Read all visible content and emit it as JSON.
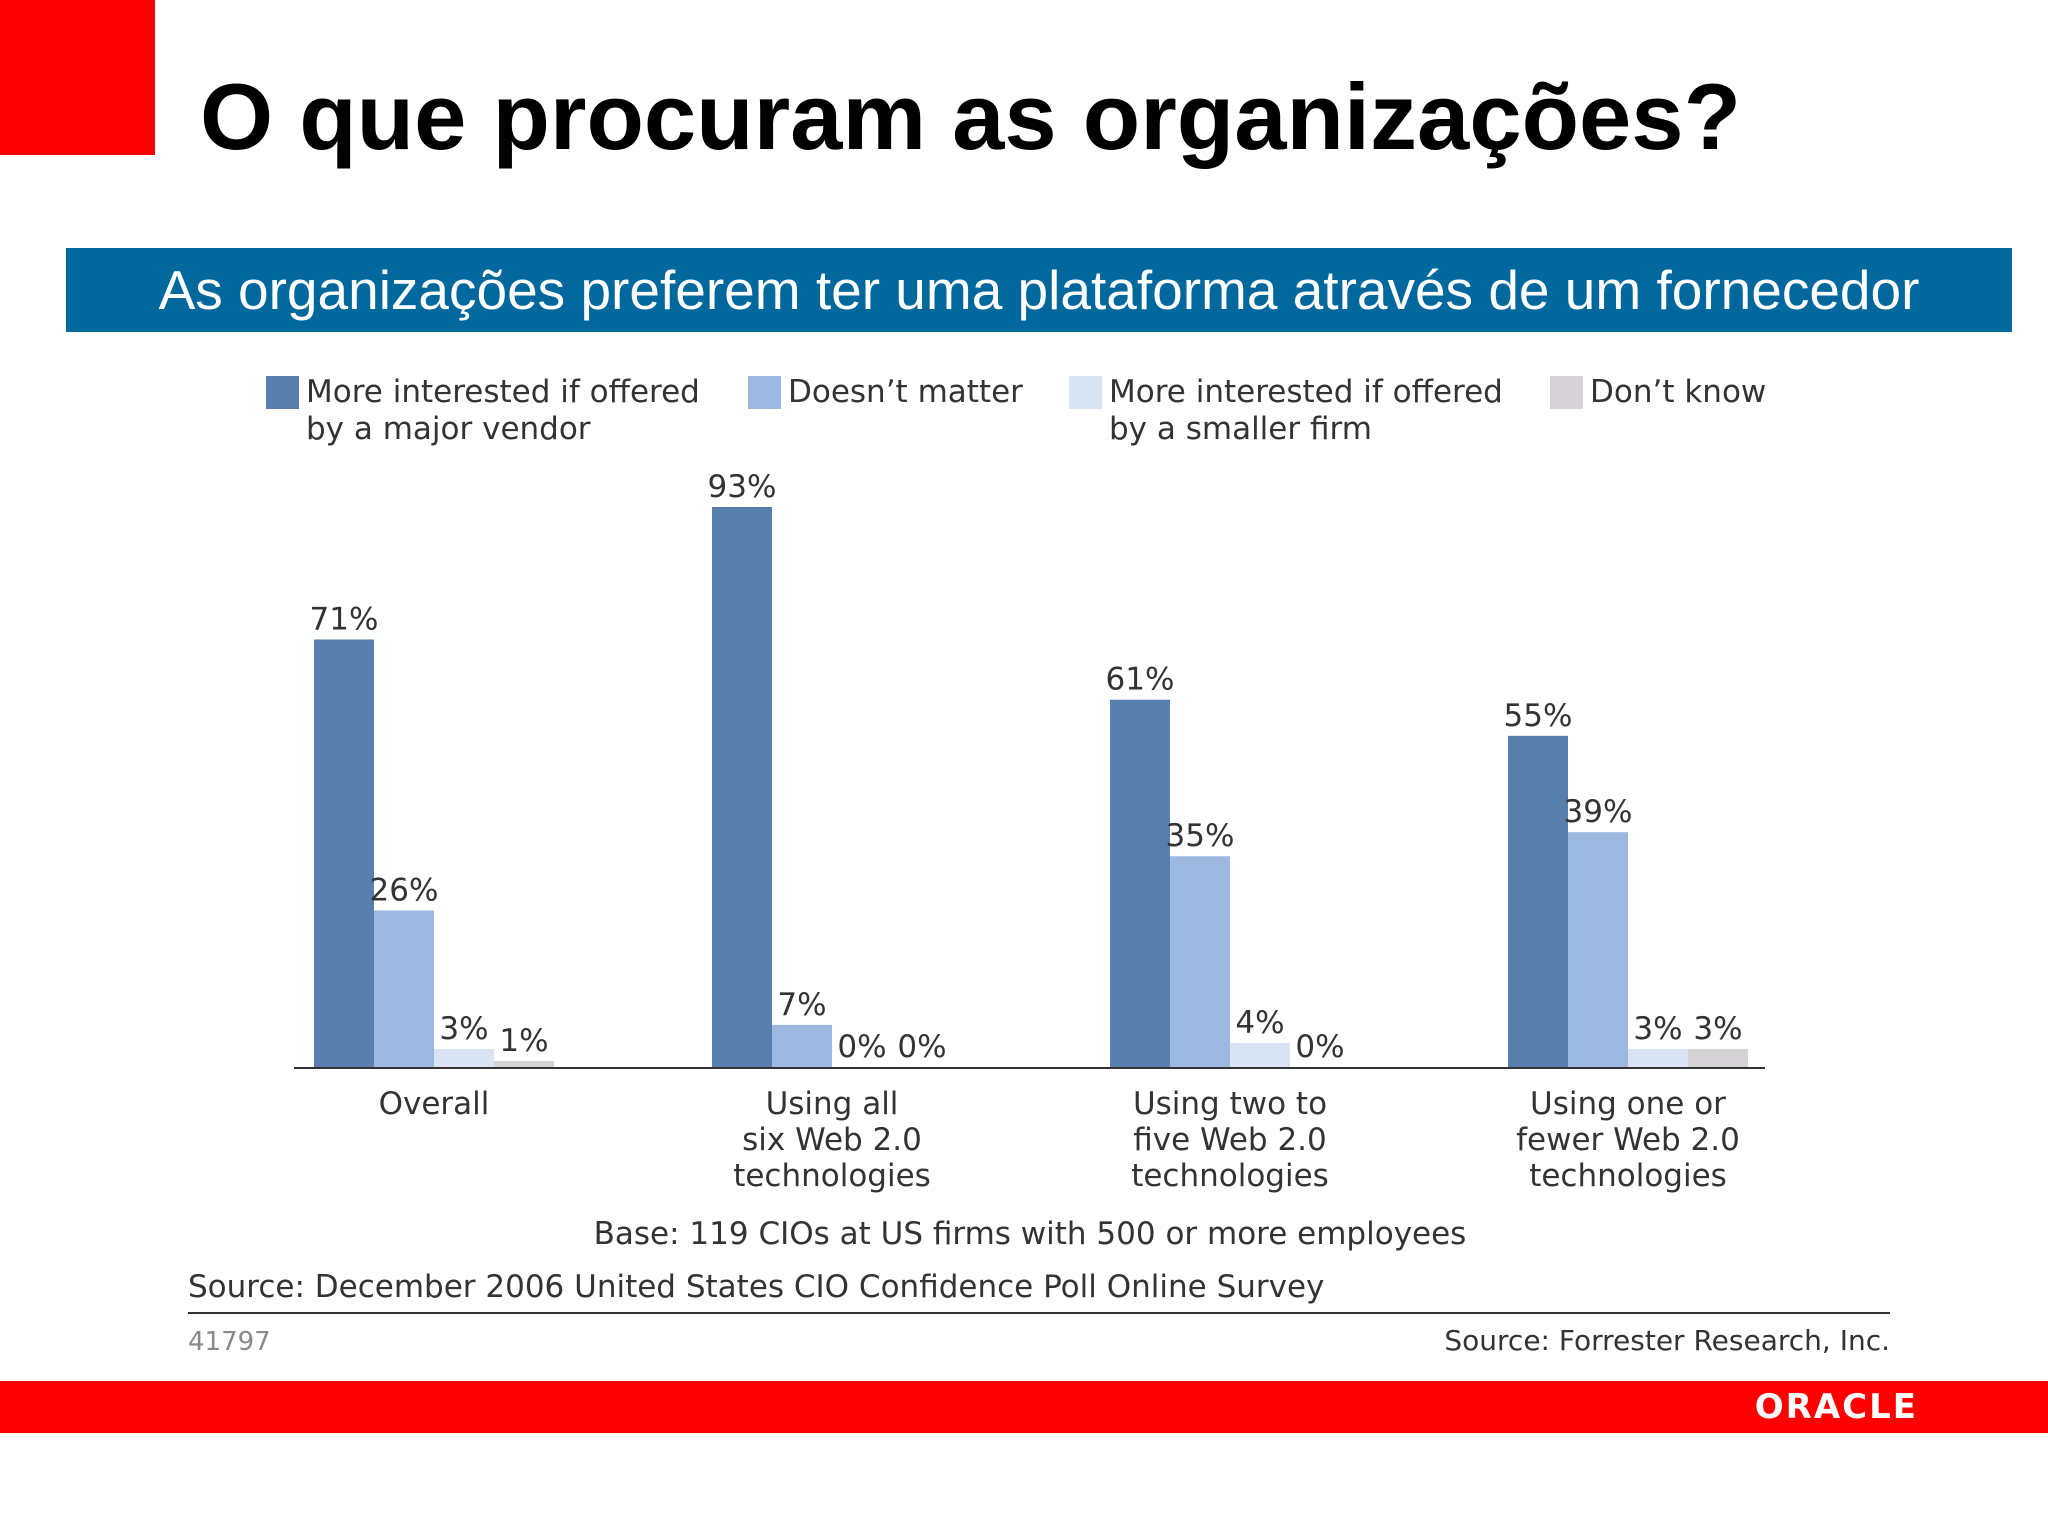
{
  "slide": {
    "title": "O que procuram as organizações?",
    "banner": "As organizações preferem ter uma plataforma através de um fornecedor",
    "logo": "ORACLE"
  },
  "colors": {
    "accent_red": "#ff0000",
    "banner_blue": "#00689c",
    "series": [
      "#587ead",
      "#9db8e0",
      "#d8e4f2",
      "#d5d3d6"
    ]
  },
  "chart_data": {
    "type": "bar",
    "categories": [
      [
        "Overall"
      ],
      [
        "Using all",
        "six Web 2.0",
        "technologies"
      ],
      [
        "Using two to",
        "five Web 2.0",
        "technologies"
      ],
      [
        "Using one or",
        "fewer Web 2.0",
        "technologies"
      ]
    ],
    "series": [
      {
        "name": [
          "More interested if offered",
          "by a major vendor"
        ],
        "values": [
          71,
          93,
          61,
          55
        ]
      },
      {
        "name": [
          "Doesn’t matter"
        ],
        "values": [
          26,
          7,
          35,
          39
        ]
      },
      {
        "name": [
          "More interested if offered",
          "by a smaller firm"
        ],
        "values": [
          3,
          0,
          4,
          3
        ]
      },
      {
        "name": [
          "Don’t know"
        ],
        "values": [
          1,
          0,
          0,
          3
        ]
      }
    ],
    "value_suffix": "%",
    "ylim": [
      0,
      93
    ],
    "grid": false,
    "legend_position": "top",
    "base_note": "Base: 119 CIOs at US firms with 500 or more employees",
    "source_note": "Source: December 2006 United States CIO Confidence Poll Online Survey",
    "figure_id": "41797",
    "credit": "Source: Forrester Research, Inc."
  }
}
